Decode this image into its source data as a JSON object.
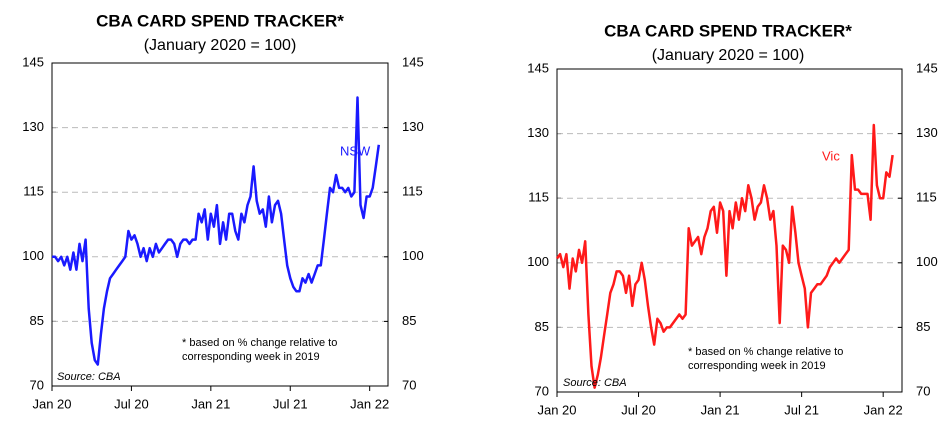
{
  "chart_data": [
    {
      "type": "line",
      "title": "CBA CARD SPEND TRACKER*",
      "subtitle": "(January 2020 = 100)",
      "categories": [
        "Jan 20",
        null,
        null,
        null,
        null,
        null,
        null,
        null,
        null,
        null,
        null,
        null,
        null,
        null,
        null,
        null,
        null,
        null,
        null,
        null,
        null,
        null,
        null,
        null,
        null,
        null,
        "Jul 20",
        null,
        null,
        null,
        null,
        null,
        null,
        null,
        null,
        null,
        null,
        null,
        null,
        null,
        null,
        null,
        null,
        null,
        null,
        null,
        null,
        null,
        null,
        null,
        null,
        null,
        "Jan 21",
        null,
        null,
        null,
        null,
        null,
        null,
        null,
        null,
        null,
        null,
        null,
        null,
        null,
        null,
        null,
        null,
        null,
        null,
        null,
        null,
        null,
        null,
        null,
        null,
        null,
        "Jul 21",
        null,
        null,
        null,
        null,
        null,
        null,
        null,
        null,
        null,
        null,
        null,
        null,
        null,
        null,
        null,
        null,
        null,
        null,
        null,
        null,
        null,
        null,
        null,
        null,
        null,
        "Jan 22",
        null,
        null,
        null
      ],
      "series": [
        {
          "name": "NSW",
          "color": "#1a1aff",
          "values": [
            100,
            100,
            99,
            100,
            98,
            100,
            97,
            101,
            97,
            103,
            99,
            104,
            88,
            80,
            76,
            75,
            82,
            88,
            92,
            95,
            96,
            97,
            98,
            99,
            100,
            106,
            104,
            105,
            103,
            100,
            102,
            99,
            102,
            100,
            103,
            101,
            102,
            103,
            104,
            104,
            103,
            100,
            103,
            104,
            104,
            103,
            104,
            104,
            110,
            108,
            111,
            104,
            110,
            107,
            112,
            103,
            108,
            104,
            110,
            110,
            106,
            104,
            110,
            108,
            112,
            114,
            121,
            113,
            110,
            111,
            107,
            114,
            108,
            112,
            113,
            110,
            104,
            98,
            95,
            93,
            92,
            92,
            95,
            94,
            96,
            94,
            96,
            98,
            98,
            104,
            110,
            116,
            115,
            119,
            116,
            116,
            115,
            116,
            114,
            115,
            137,
            112,
            109,
            114,
            114,
            116,
            121,
            126
          ]
        }
      ],
      "ylim": [
        70,
        145
      ],
      "yticks": [
        70,
        85,
        100,
        115,
        130,
        145
      ],
      "y2lim": [
        70,
        145
      ],
      "y2ticks": [
        70,
        85,
        100,
        115,
        130,
        145
      ],
      "grid": true,
      "footnote": [
        "*  based on % change relative to",
        "corresponding  week in 2019"
      ],
      "source": "Source:  CBA"
    },
    {
      "type": "line",
      "title": "CBA CARD SPEND TRACKER*",
      "subtitle": "(January 2020 = 100)",
      "categories": [
        "Jan 20",
        null,
        null,
        null,
        null,
        null,
        null,
        null,
        null,
        null,
        null,
        null,
        null,
        null,
        null,
        null,
        null,
        null,
        null,
        null,
        null,
        null,
        null,
        null,
        null,
        null,
        "Jul 20",
        null,
        null,
        null,
        null,
        null,
        null,
        null,
        null,
        null,
        null,
        null,
        null,
        null,
        null,
        null,
        null,
        null,
        null,
        null,
        null,
        null,
        null,
        null,
        null,
        null,
        "Jan 21",
        null,
        null,
        null,
        null,
        null,
        null,
        null,
        null,
        null,
        null,
        null,
        null,
        null,
        null,
        null,
        null,
        null,
        null,
        null,
        null,
        null,
        null,
        null,
        null,
        null,
        "Jul 21",
        null,
        null,
        null,
        null,
        null,
        null,
        null,
        null,
        null,
        null,
        null,
        null,
        null,
        null,
        null,
        null,
        null,
        null,
        null,
        null,
        null,
        null,
        null,
        null,
        null,
        "Jan 22",
        null,
        null,
        null
      ],
      "series": [
        {
          "name": "Vic",
          "color": "#ff1a1a",
          "values": [
            101,
            102,
            99,
            102,
            94,
            101,
            98,
            103,
            100,
            105,
            88,
            76,
            71,
            74,
            78,
            83,
            88,
            93,
            95,
            98,
            98,
            97,
            93,
            97,
            90,
            95,
            96,
            100,
            96,
            90,
            85,
            81,
            87,
            86,
            84,
            85,
            85,
            86,
            87,
            88,
            87,
            88,
            108,
            104,
            105,
            106,
            102,
            106,
            108,
            112,
            113,
            107,
            114,
            112,
            97,
            112,
            108,
            114,
            110,
            115,
            112,
            118,
            115,
            110,
            113,
            114,
            118,
            115,
            110,
            112,
            104,
            86,
            104,
            103,
            100,
            113,
            107,
            100,
            97,
            94,
            85,
            93,
            94,
            95,
            95,
            96,
            97,
            99,
            100,
            101,
            100,
            101,
            102,
            103,
            125,
            117,
            117,
            116,
            116,
            116,
            110,
            132,
            118,
            115,
            115,
            121,
            120,
            125
          ]
        }
      ],
      "ylim": [
        70,
        145
      ],
      "yticks": [
        70,
        85,
        100,
        115,
        130,
        145
      ],
      "y2lim": [
        70,
        145
      ],
      "y2ticks": [
        70,
        85,
        100,
        115,
        130,
        145
      ],
      "grid": true,
      "footnote": [
        "*  based on % change relative to",
        "corresponding  week in 2019"
      ],
      "source": "Source:  CBA"
    }
  ]
}
